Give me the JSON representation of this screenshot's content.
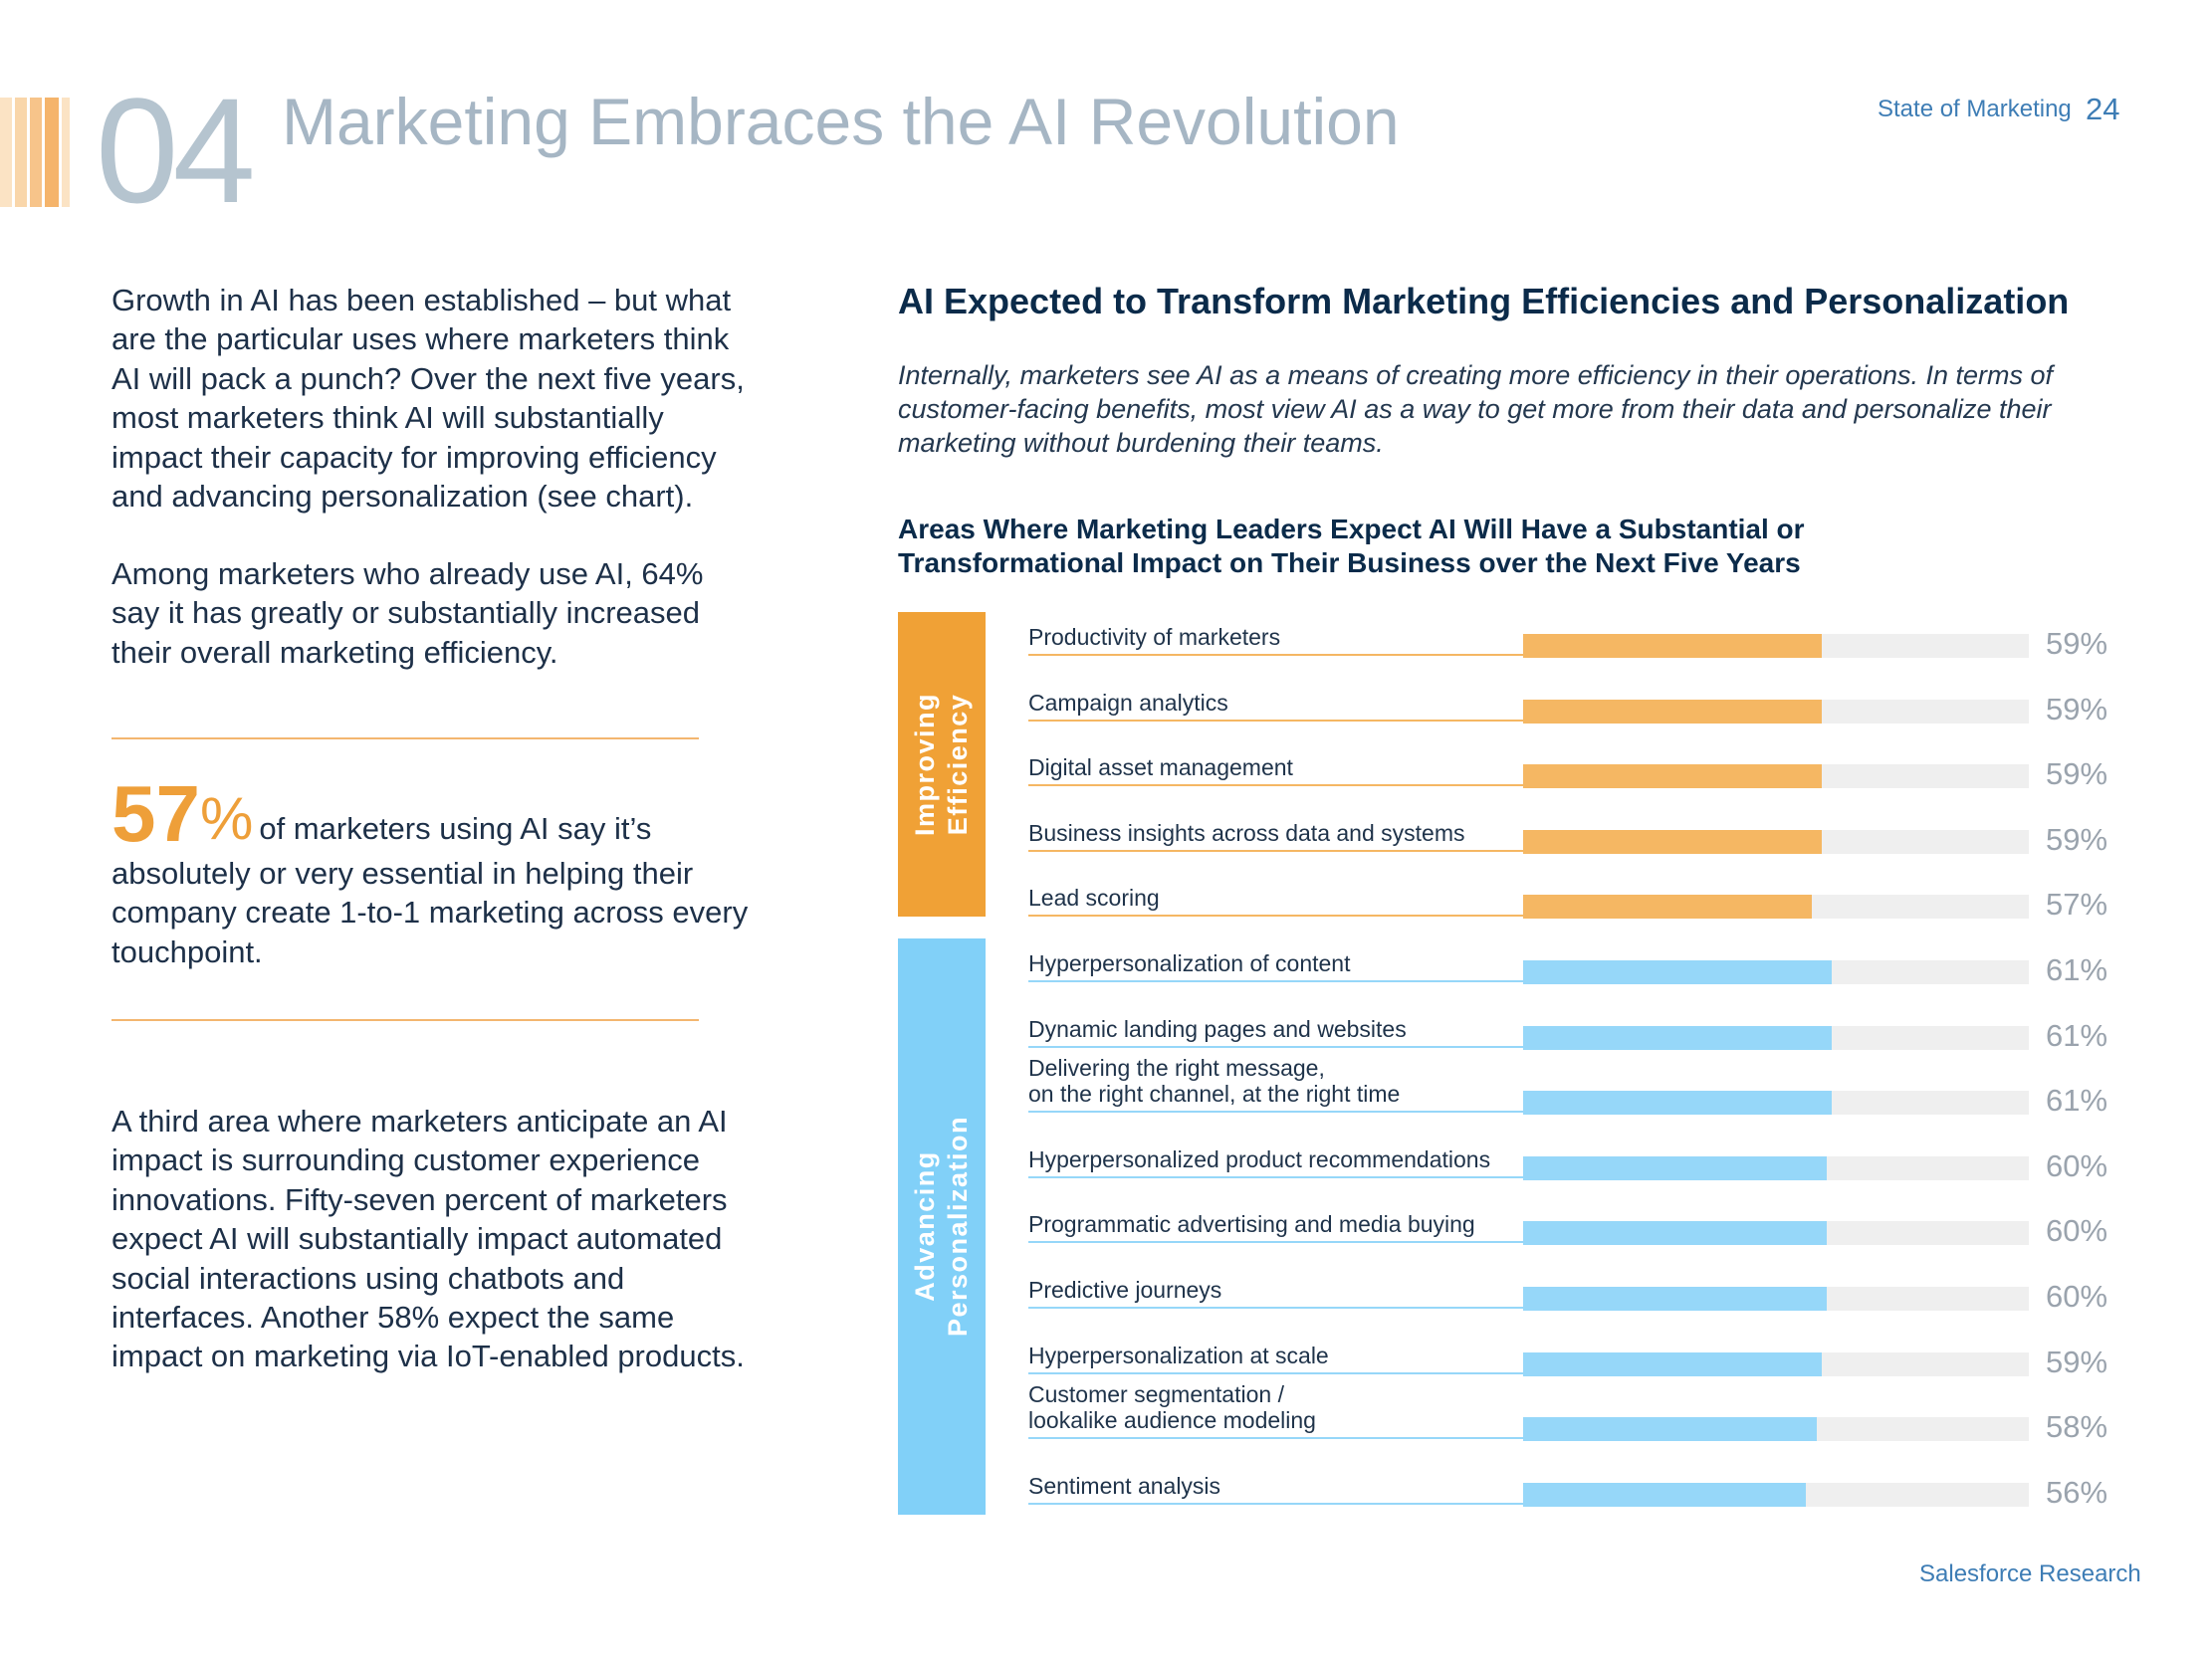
{
  "header": {
    "section_number": "04",
    "title": "Marketing Embraces the AI Revolution",
    "brand": "State of Marketing",
    "page_number": "24"
  },
  "left_column": {
    "intro_paragraph": "Growth in AI has been established – but what are the particular uses where marketers think AI will pack a punch? Over the next five years, most marketers think AI will substantially impact their capacity for improving efficiency and advancing personalization (see chart).",
    "usage_paragraph": "Among marketers who already use AI, 64% say it has greatly or substantially increased their overall marketing efficiency.",
    "stat": {
      "number": "57",
      "percent_sign": "%",
      "text": "of marketers using AI say it’s absolutely or very essential in helping their company create 1-to-1 marketing across every touchpoint."
    },
    "closing_paragraph": "A third area where marketers anticipate an AI impact is surrounding customer experience innovations. Fifty-seven percent of marketers expect AI will substantially impact automated social interactions using chatbots and interfaces. Another 58% expect the same impact on marketing via IoT-enabled products."
  },
  "right_column": {
    "heading": "AI Expected to Transform Marketing Efficiencies and Personalization",
    "intro": "Internally, marketers see AI as a means of creating more efficiency in their operations. In terms of customer-facing benefits, most view AI as a way to get more from their data and personalize their marketing without burdening their teams."
  },
  "colors": {
    "efficiency_band": "#f0a136",
    "efficiency_bar": "#f5b763",
    "personalization_band": "#81d0f8",
    "personalization_bar": "#96d7f9",
    "track": "#efefef"
  },
  "chart_data": {
    "type": "bar",
    "orientation": "horizontal",
    "title": "Areas Where Marketing Leaders Expect AI Will Have a Substantial or Transformational Impact on Their Business over the Next Five Years",
    "unit": "%",
    "xlim": [
      0,
      100
    ],
    "groups": [
      {
        "name_lines": [
          "Improving",
          "Efficiency"
        ],
        "color_key": "efficiency",
        "items": [
          {
            "label": "Productivity of marketers",
            "value": 59
          },
          {
            "label": "Campaign analytics",
            "value": 59
          },
          {
            "label": "Digital asset management",
            "value": 59
          },
          {
            "label": "Business insights across data and systems",
            "value": 59
          },
          {
            "label": "Lead scoring",
            "value": 57
          }
        ]
      },
      {
        "name_lines": [
          "Advancing",
          "Personalization"
        ],
        "color_key": "personalization",
        "items": [
          {
            "label": "Hyperpersonalization of content",
            "value": 61
          },
          {
            "label": "Dynamic landing pages and websites",
            "value": 61
          },
          {
            "label": "Delivering the right message,\non the right channel, at the right time",
            "value": 61
          },
          {
            "label": "Hyperpersonalized product recommendations",
            "value": 60
          },
          {
            "label": "Programmatic advertising and media buying",
            "value": 60
          },
          {
            "label": "Predictive journeys",
            "value": 60
          },
          {
            "label": "Hyperpersonalization at scale",
            "value": 59
          },
          {
            "label": "Customer segmentation /\nlookalike audience modeling",
            "value": 58
          },
          {
            "label": "Sentiment analysis",
            "value": 56
          }
        ]
      }
    ]
  },
  "footer": {
    "source": "Salesforce Research"
  }
}
